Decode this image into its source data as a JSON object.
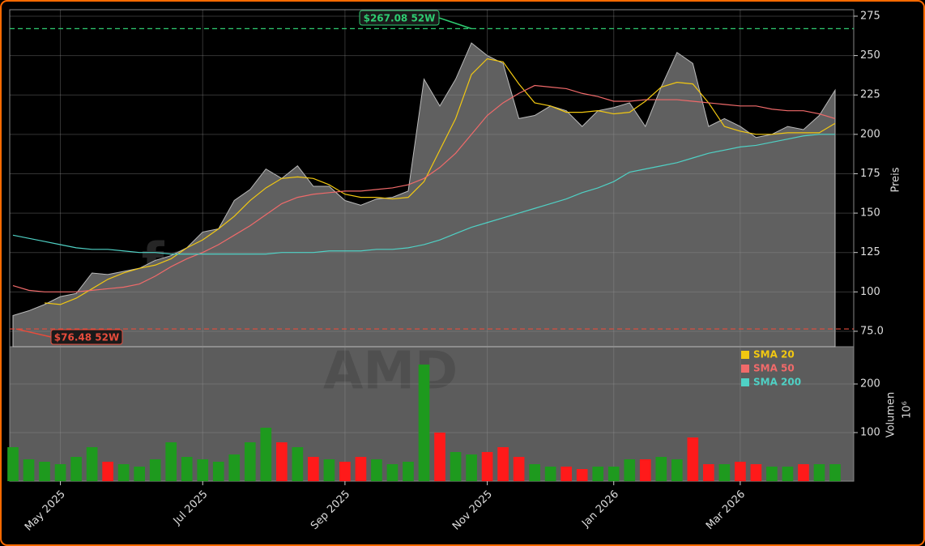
{
  "chart_data": {
    "type": "line",
    "ylabel": "Preis",
    "watermark": [
      "forexsignale.trade",
      "AMD"
    ],
    "categories": [
      null,
      null,
      null,
      "May 2025",
      null,
      null,
      null,
      null,
      null,
      null,
      null,
      null,
      "Jul 2025",
      null,
      null,
      null,
      null,
      null,
      null,
      null,
      null,
      "Sep 2025",
      null,
      null,
      null,
      null,
      null,
      null,
      null,
      null,
      "Nov 2025",
      null,
      null,
      null,
      null,
      null,
      null,
      null,
      "Jan 2026",
      null,
      null,
      null,
      null,
      null,
      null,
      null,
      "Mar 2026",
      null,
      null,
      null,
      null,
      null,
      null
    ],
    "values": [
      85,
      88,
      92,
      97,
      99,
      112,
      111,
      113,
      115,
      120,
      123,
      128,
      138,
      140,
      158,
      165,
      178,
      172,
      180,
      167,
      167,
      158,
      155,
      159,
      160,
      164,
      235,
      218,
      235,
      258,
      250,
      245,
      210,
      212,
      218,
      215,
      205,
      215,
      217,
      220,
      205,
      230,
      252,
      245,
      205,
      210,
      205,
      198,
      200,
      205,
      203,
      212,
      228
    ],
    "color": "#606060",
    "series": [
      {
        "name": "SMA 20",
        "color": "#f2c811",
        "values": [
          null,
          null,
          93,
          92,
          96,
          102,
          108,
          112,
          115,
          117,
          121,
          128,
          133,
          140,
          148,
          158,
          166,
          172,
          173,
          172,
          168,
          162,
          160,
          160,
          159,
          160,
          170,
          190,
          210,
          238,
          248,
          246,
          232,
          220,
          218,
          214,
          214,
          215,
          213,
          214,
          221,
          230,
          233,
          232,
          220,
          205,
          202,
          200,
          200,
          201,
          201,
          201,
          207
        ]
      },
      {
        "name": "SMA 50",
        "color": "#f06a6a",
        "values": [
          104,
          101,
          100,
          100,
          100,
          101,
          102,
          103,
          105,
          110,
          116,
          121,
          125,
          130,
          136,
          142,
          149,
          156,
          160,
          162,
          163,
          164,
          164,
          165,
          166,
          168,
          172,
          179,
          188,
          200,
          212,
          220,
          226,
          231,
          230,
          229,
          226,
          224,
          221,
          221,
          222,
          222,
          222,
          221,
          220,
          219,
          218,
          218,
          216,
          215,
          215,
          213,
          210
        ]
      },
      {
        "name": "SMA 200",
        "color": "#4fd1c5",
        "values": [
          136,
          134,
          132,
          130,
          128,
          127,
          127,
          126,
          125,
          125,
          124,
          124,
          124,
          124,
          124,
          124,
          124,
          125,
          125,
          125,
          126,
          126,
          126,
          127,
          127,
          128,
          130,
          133,
          137,
          141,
          144,
          147,
          150,
          153,
          156,
          159,
          163,
          166,
          170,
          176,
          178,
          180,
          182,
          185,
          188,
          190,
          192,
          193,
          195,
          197,
          199,
          200,
          200
        ]
      }
    ],
    "ylim": [
      65.2,
      279.1
    ],
    "yticks": [
      {
        "value": 75,
        "label": "75.0"
      },
      100,
      125,
      150,
      175,
      200,
      225,
      250,
      275
    ],
    "grid": true,
    "annotations": [
      {
        "value": 267.08,
        "label": "$267.08 52W",
        "color": "#2ecc71"
      },
      {
        "value": 76.48,
        "label": "$76.48 52W",
        "color": "#e74c3c"
      }
    ],
    "volume": {
      "ylabel": "Volumen",
      "unit": "10⁶",
      "values": [
        70,
        45,
        40,
        35,
        50,
        70,
        40,
        35,
        30,
        45,
        80,
        50,
        45,
        40,
        55,
        80,
        110,
        80,
        70,
        50,
        45,
        40,
        50,
        45,
        35,
        40,
        240,
        100,
        60,
        55,
        60,
        70,
        50,
        35,
        30,
        30,
        25,
        30,
        30,
        45,
        45,
        50,
        45,
        90,
        35,
        35,
        40,
        35,
        30,
        30,
        35,
        35,
        35
      ],
      "up_color": "#1e9a1e",
      "down_color": "#ff1a1a",
      "ylim": [
        0,
        276.7
      ],
      "yticks": [
        100,
        200
      ]
    }
  }
}
